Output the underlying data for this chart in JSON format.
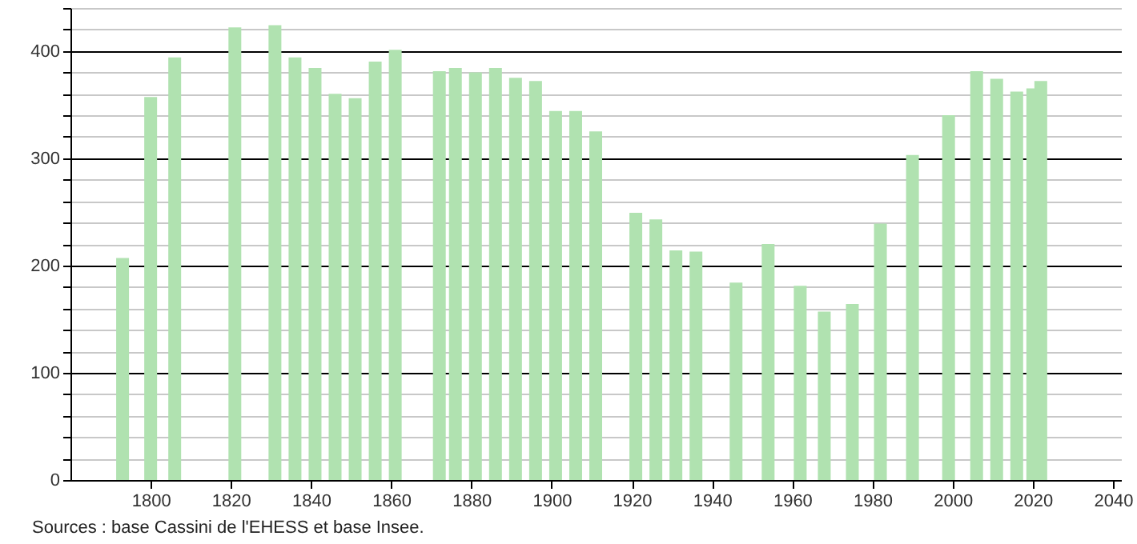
{
  "chart_data": {
    "type": "bar",
    "x": [
      1793,
      1800,
      1806,
      1821,
      1831,
      1836,
      1841,
      1846,
      1851,
      1856,
      1861,
      1872,
      1876,
      1881,
      1886,
      1891,
      1896,
      1901,
      1906,
      1911,
      1921,
      1926,
      1931,
      1936,
      1946,
      1954,
      1962,
      1968,
      1975,
      1982,
      1990,
      1999,
      2006,
      2011,
      2016,
      2020,
      2022
    ],
    "values": [
      207,
      357,
      394,
      422,
      424,
      394,
      384,
      360,
      356,
      390,
      401,
      381,
      384,
      380,
      384,
      375,
      372,
      344,
      344,
      325,
      249,
      243,
      214,
      213,
      184,
      220,
      181,
      157,
      164,
      239,
      303,
      340,
      381,
      374,
      362,
      365,
      372
    ],
    "color": "#b0e2b0",
    "xlim": [
      1780,
      2042
    ],
    "xticks": [
      1800,
      1820,
      1840,
      1860,
      1880,
      1900,
      1920,
      1940,
      1960,
      1980,
      2000,
      2020,
      2040
    ],
    "ylim": [
      0,
      440
    ],
    "yticks": [
      0,
      {
        "value": 20,
        "label": null
      },
      {
        "value": 40,
        "label": null
      },
      {
        "value": 60,
        "label": null
      },
      {
        "value": 80,
        "label": null
      },
      100,
      {
        "value": 120,
        "label": null
      },
      {
        "value": 140,
        "label": null
      },
      {
        "value": 160,
        "label": null
      },
      {
        "value": 180,
        "label": null
      },
      200,
      {
        "value": 220,
        "label": null
      },
      {
        "value": 240,
        "label": null
      },
      {
        "value": 260,
        "label": null
      },
      {
        "value": 280,
        "label": null
      },
      300,
      {
        "value": 320,
        "label": null
      },
      {
        "value": 340,
        "label": null
      },
      {
        "value": 360,
        "label": null
      },
      {
        "value": 380,
        "label": null
      },
      400,
      {
        "value": 420,
        "label": null
      },
      {
        "value": 440,
        "label": null
      }
    ],
    "grid": "y",
    "annotations": [
      "Sources : base Cassini de l'EHESS et base Insee."
    ]
  }
}
